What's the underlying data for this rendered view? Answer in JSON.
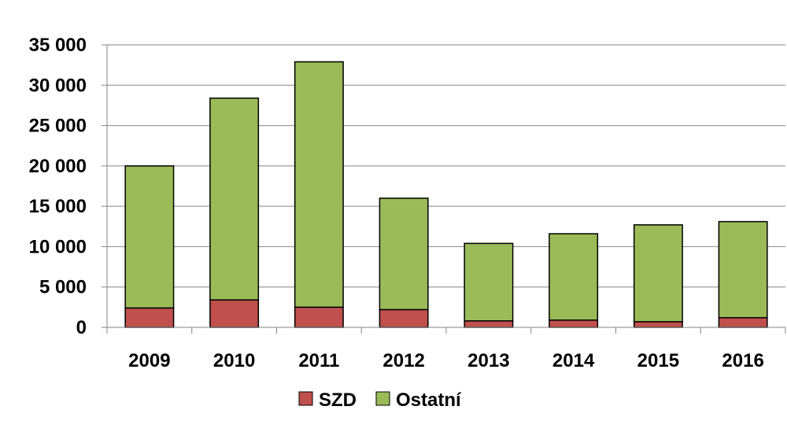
{
  "chart_data": {
    "type": "bar",
    "stacked": true,
    "categories": [
      "2009",
      "2010",
      "2011",
      "2012",
      "2013",
      "2014",
      "2015",
      "2016"
    ],
    "series": [
      {
        "name": "SZD",
        "color": "#c0504d",
        "values": [
          2400,
          3400,
          2500,
          2200,
          800,
          900,
          700,
          1200
        ]
      },
      {
        "name": "Ostatní",
        "color": "#9bbb59",
        "values": [
          17600,
          25000,
          30400,
          13800,
          9600,
          10700,
          12000,
          11900
        ]
      }
    ],
    "ylim": [
      0,
      35000
    ],
    "yticks": [
      0,
      5000,
      10000,
      15000,
      20000,
      25000,
      30000,
      35000
    ],
    "ytick_labels": [
      "0",
      "5 000",
      "10 000",
      "15 000",
      "20 000",
      "25 000",
      "30 000",
      "35 000"
    ],
    "grid": true,
    "legend_position": "bottom",
    "gridline_color": "#868686",
    "axis_color": "#868686",
    "bar_outline_color": "#000000"
  }
}
